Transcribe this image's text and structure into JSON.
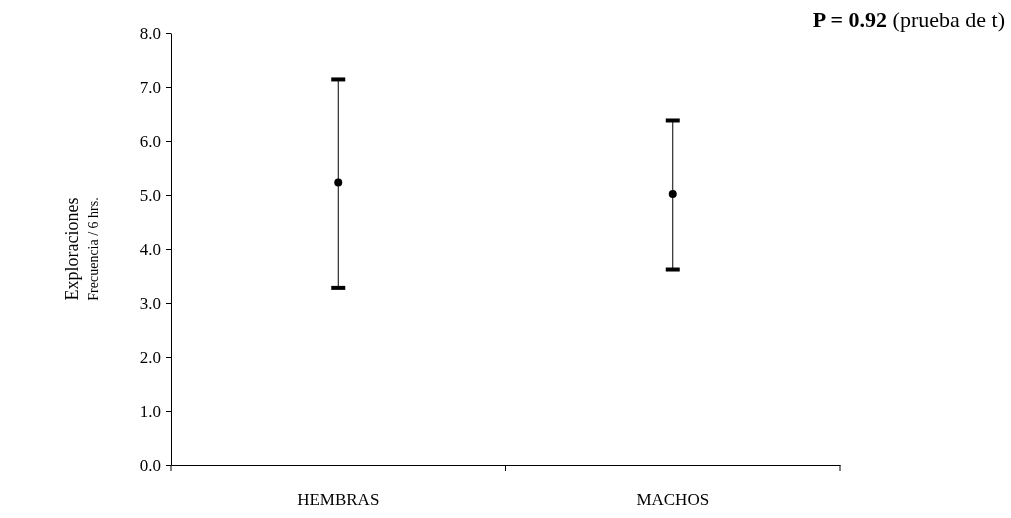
{
  "chart_data": {
    "type": "scatter",
    "categories": [
      "HEMBRAS",
      "MACHOS"
    ],
    "ylabel": "Exploraciones\nFrecuencia / 6 hrs.",
    "values": [
      5.23,
      5.02
    ],
    "errors": [
      [
        3.28,
        7.14
      ],
      [
        3.62,
        6.38
      ]
    ],
    "color": "#000000",
    "marker": "circle",
    "ylim": [
      0,
      8
    ],
    "yticks": [
      {
        "value": 0,
        "label": "0.0"
      },
      {
        "value": 1,
        "label": "1.0"
      },
      {
        "value": 2,
        "label": "2.0"
      },
      {
        "value": 3,
        "label": "3.0"
      },
      {
        "value": 4,
        "label": "4.0"
      },
      {
        "value": 5,
        "label": "5.0"
      },
      {
        "value": 6,
        "label": "6.0"
      },
      {
        "value": 7,
        "label": "7.0"
      },
      {
        "value": 8,
        "label": "8.0"
      }
    ],
    "annotations": [
      "P = 0.92",
      "(prueba de t)"
    ]
  }
}
